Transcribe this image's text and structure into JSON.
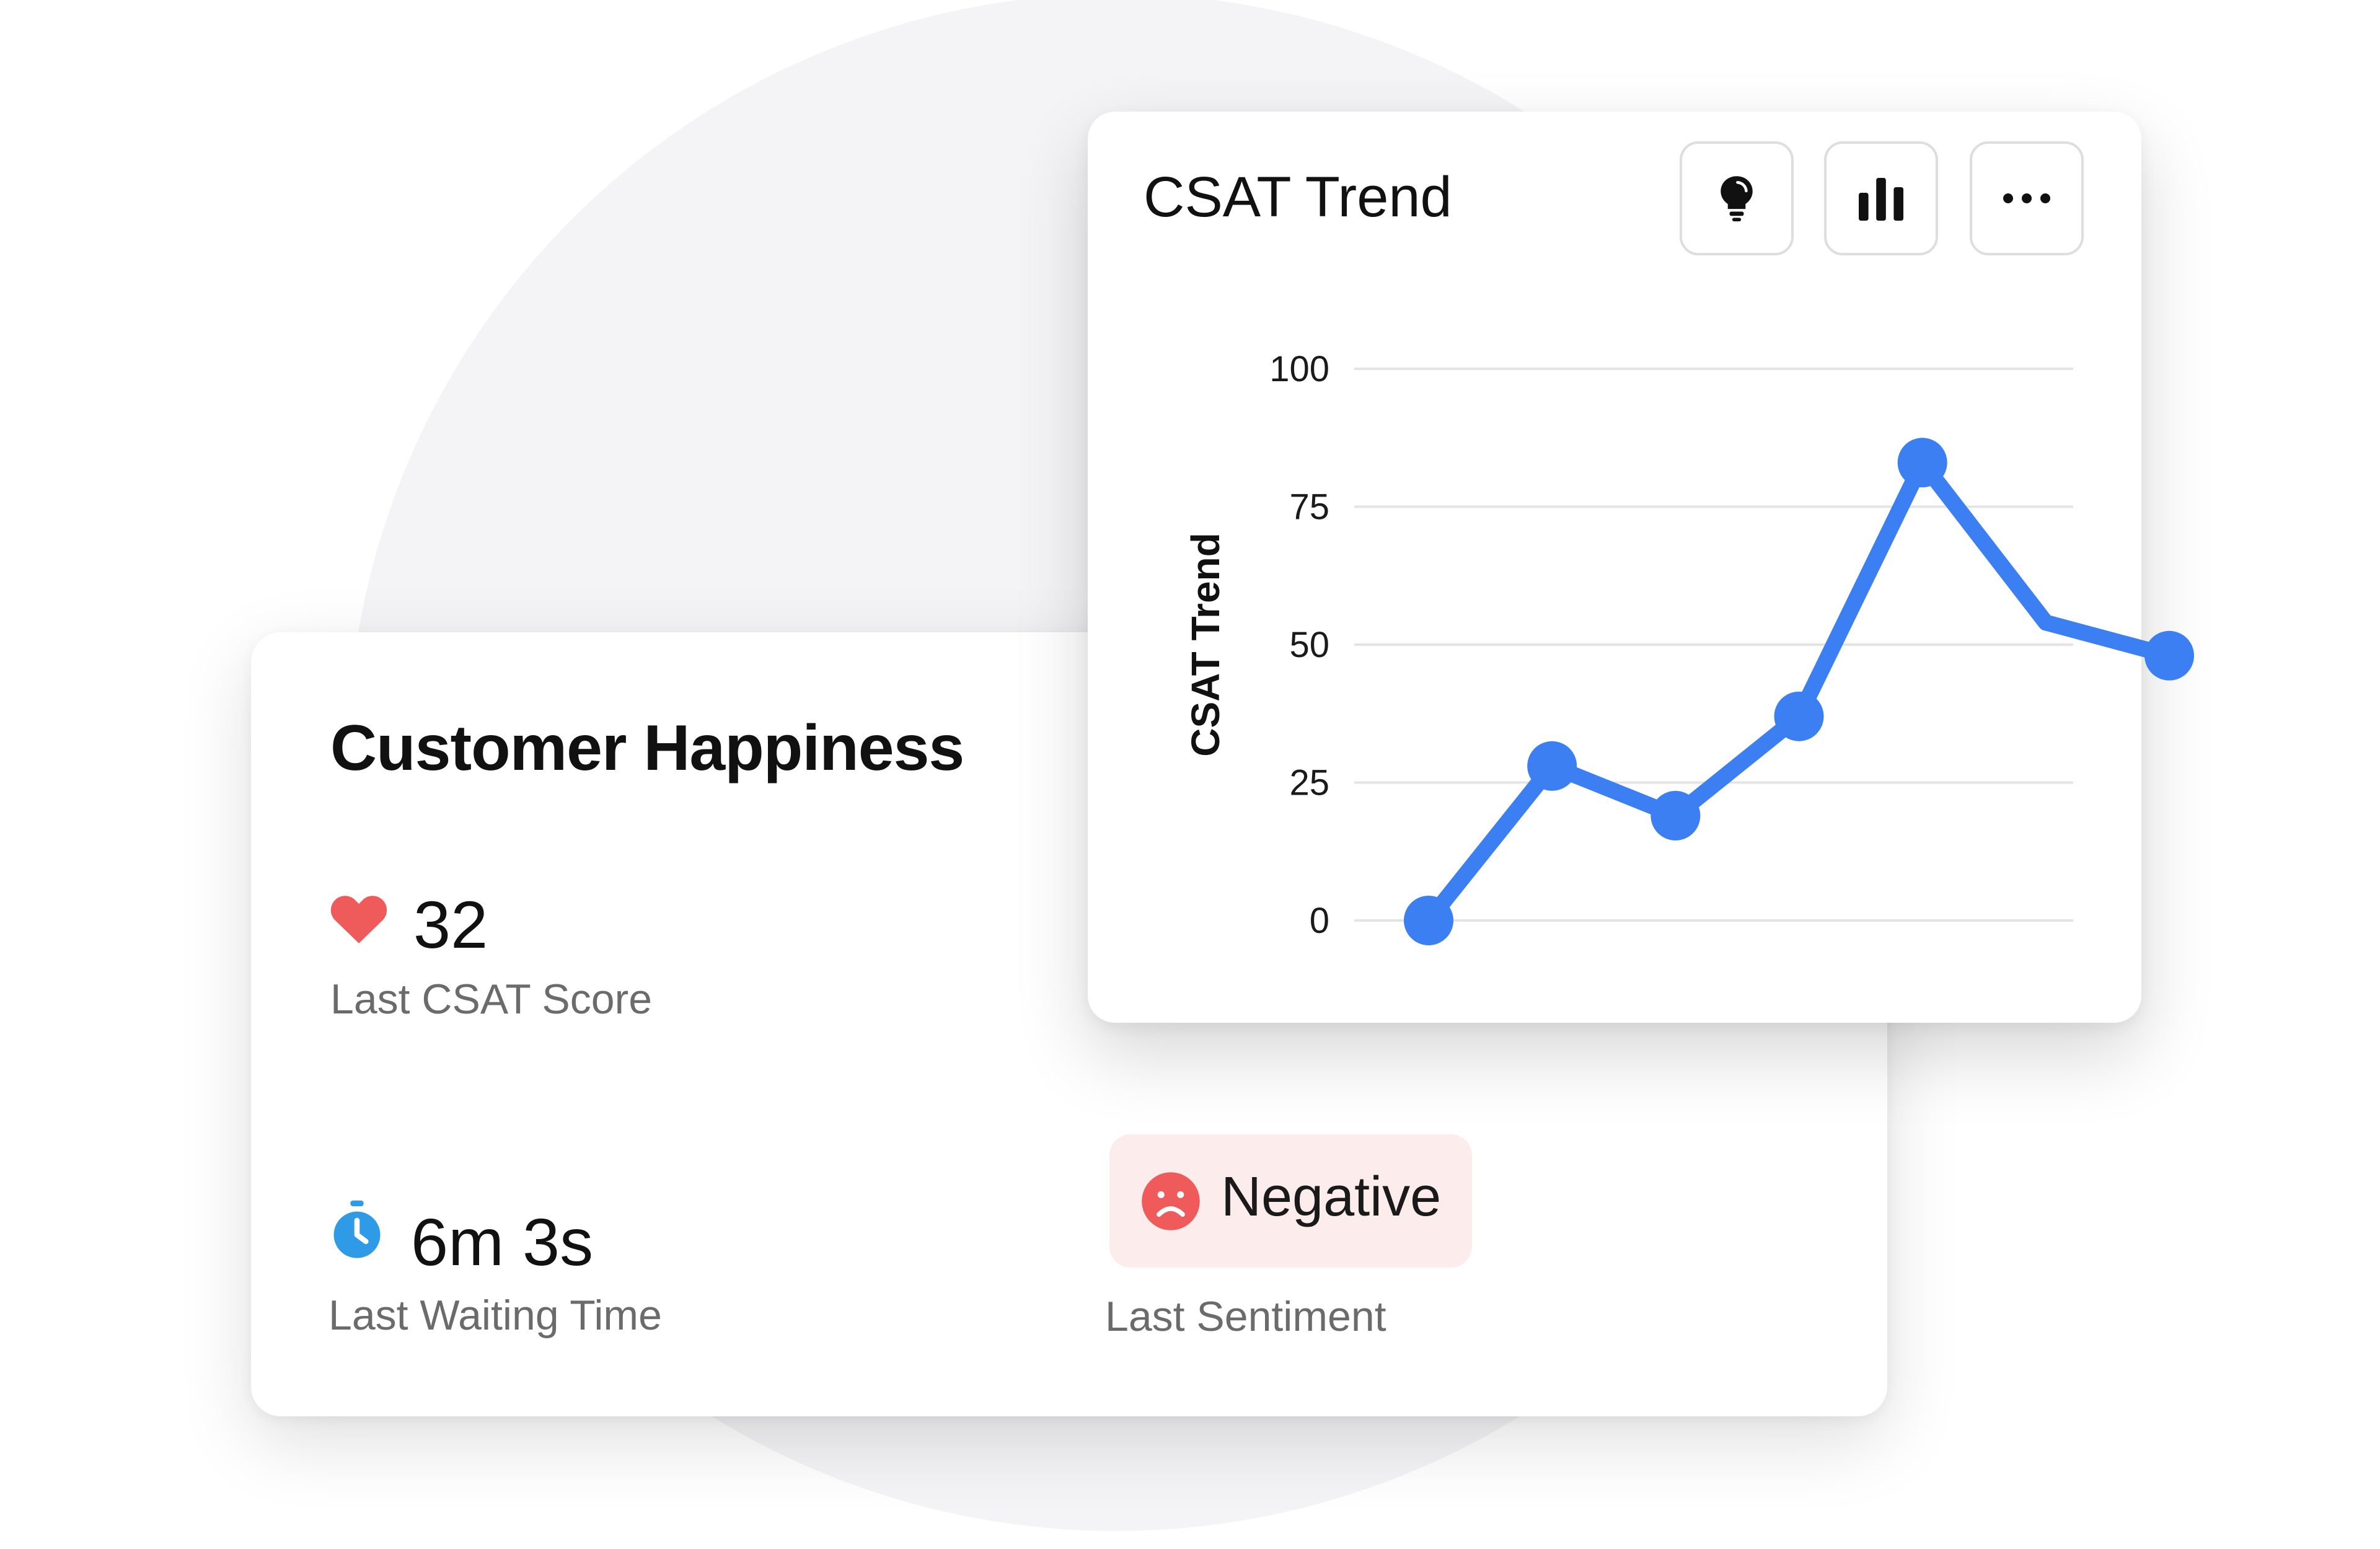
{
  "happiness": {
    "title": "Customer Happiness",
    "csat": {
      "value": "32",
      "label": "Last CSAT Score",
      "icon": "heart-icon",
      "icon_color": "#ef5b5b"
    },
    "waiting": {
      "value": "6m 3s",
      "label": "Last Waiting Time",
      "icon": "stopwatch-icon",
      "icon_color": "#2f9be6"
    },
    "sentiment": {
      "value": "Negative",
      "label": "Last Sentiment",
      "icon": "sad-face-icon",
      "icon_color": "#ef5b5b",
      "pill_color": "#fdecec"
    }
  },
  "trend_card": {
    "title": "CSAT Trend",
    "buttons": [
      {
        "name": "insight-button",
        "icon": "lightbulb-icon"
      },
      {
        "name": "chart-type-button",
        "icon": "bar-chart-icon"
      },
      {
        "name": "more-options-button",
        "icon": "more-horizontal-icon"
      }
    ]
  },
  "chart_data": {
    "type": "line",
    "title": "CSAT Trend",
    "ylabel": "CSAT Trend",
    "xlabel": "",
    "ylim": [
      0,
      100
    ],
    "yticks": [
      0,
      25,
      50,
      75,
      100
    ],
    "grid": true,
    "series": [
      {
        "color": "#3b7ff2",
        "values": [
          0,
          28,
          19,
          37,
          83,
          54,
          48
        ],
        "markers": [
          true,
          true,
          true,
          true,
          true,
          false,
          true
        ]
      }
    ]
  }
}
